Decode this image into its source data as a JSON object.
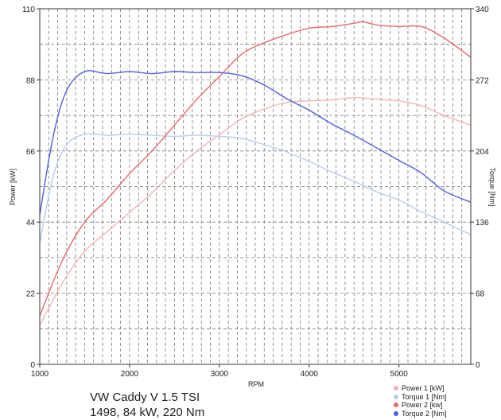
{
  "chart_data": {
    "type": "line",
    "xlabel": "RPM",
    "ylabel_left": "Power [kW]",
    "ylabel_right": "Torque [Nm]",
    "xlim": [
      1000,
      5800
    ],
    "ylim_left": [
      0,
      110
    ],
    "ylim_right": [
      0,
      340
    ],
    "xticks": [
      1000,
      2000,
      3000,
      4000,
      5000
    ],
    "yticks_left": [
      0,
      22,
      44,
      66,
      88,
      110
    ],
    "yticks_right": [
      0,
      68,
      136,
      204,
      272,
      340
    ],
    "grid": true,
    "legend_position": "bottom-right",
    "series": [
      {
        "name": "Power 1 [kW]",
        "axis": "left",
        "color": "#f0b4b4",
        "x": [
          1000,
          1250,
          1500,
          1750,
          2000,
          2250,
          2500,
          2750,
          3000,
          3250,
          3500,
          3750,
          4000,
          4250,
          4500,
          4750,
          5000,
          5250,
          5500,
          5800
        ],
        "y": [
          12,
          25,
          35,
          41,
          47,
          53,
          60,
          66,
          71,
          76,
          79,
          81,
          81.5,
          81.8,
          82.5,
          82,
          81.5,
          80,
          77,
          74
        ]
      },
      {
        "name": "Torque 1 [Nm]",
        "axis": "right",
        "color": "#bccbf0",
        "x": [
          1000,
          1150,
          1300,
          1500,
          1750,
          2000,
          2250,
          2500,
          2750,
          3000,
          3250,
          3500,
          3750,
          4000,
          4250,
          4500,
          4750,
          5000,
          5250,
          5500,
          5800
        ],
        "y": [
          116,
          180,
          210,
          220,
          219,
          220,
          219,
          218,
          219,
          218,
          216,
          210,
          203,
          194,
          184,
          175,
          165,
          157,
          146,
          136,
          124
        ]
      },
      {
        "name": "Power 2 [kw]",
        "axis": "left",
        "color": "#e86a6a",
        "x": [
          1000,
          1250,
          1500,
          1750,
          2000,
          2250,
          2500,
          2750,
          3000,
          3250,
          3500,
          3750,
          4000,
          4250,
          4500,
          4600,
          4750,
          5000,
          5250,
          5500,
          5800
        ],
        "y": [
          15,
          32,
          44,
          51,
          59,
          66,
          74,
          82,
          89,
          96,
          99.5,
          102,
          104,
          104.5,
          105.5,
          106,
          105,
          104.5,
          104.5,
          101,
          95
        ]
      },
      {
        "name": "Torque 2 [Nm]",
        "axis": "right",
        "color": "#4f5fe0",
        "x": [
          1000,
          1150,
          1300,
          1500,
          1750,
          2000,
          2250,
          2500,
          2750,
          3000,
          3250,
          3500,
          3750,
          4000,
          4250,
          4500,
          4750,
          5000,
          5250,
          5500,
          5800
        ],
        "y": [
          143,
          218,
          262,
          280,
          278,
          280,
          278,
          280,
          279,
          279,
          276,
          267,
          254,
          243,
          230,
          219,
          207,
          195,
          183,
          166,
          155
        ]
      }
    ]
  },
  "caption": {
    "line1": "VW Caddy V 1.5 TSI",
    "line2": "1498, 84 kW, 220 Nm"
  }
}
